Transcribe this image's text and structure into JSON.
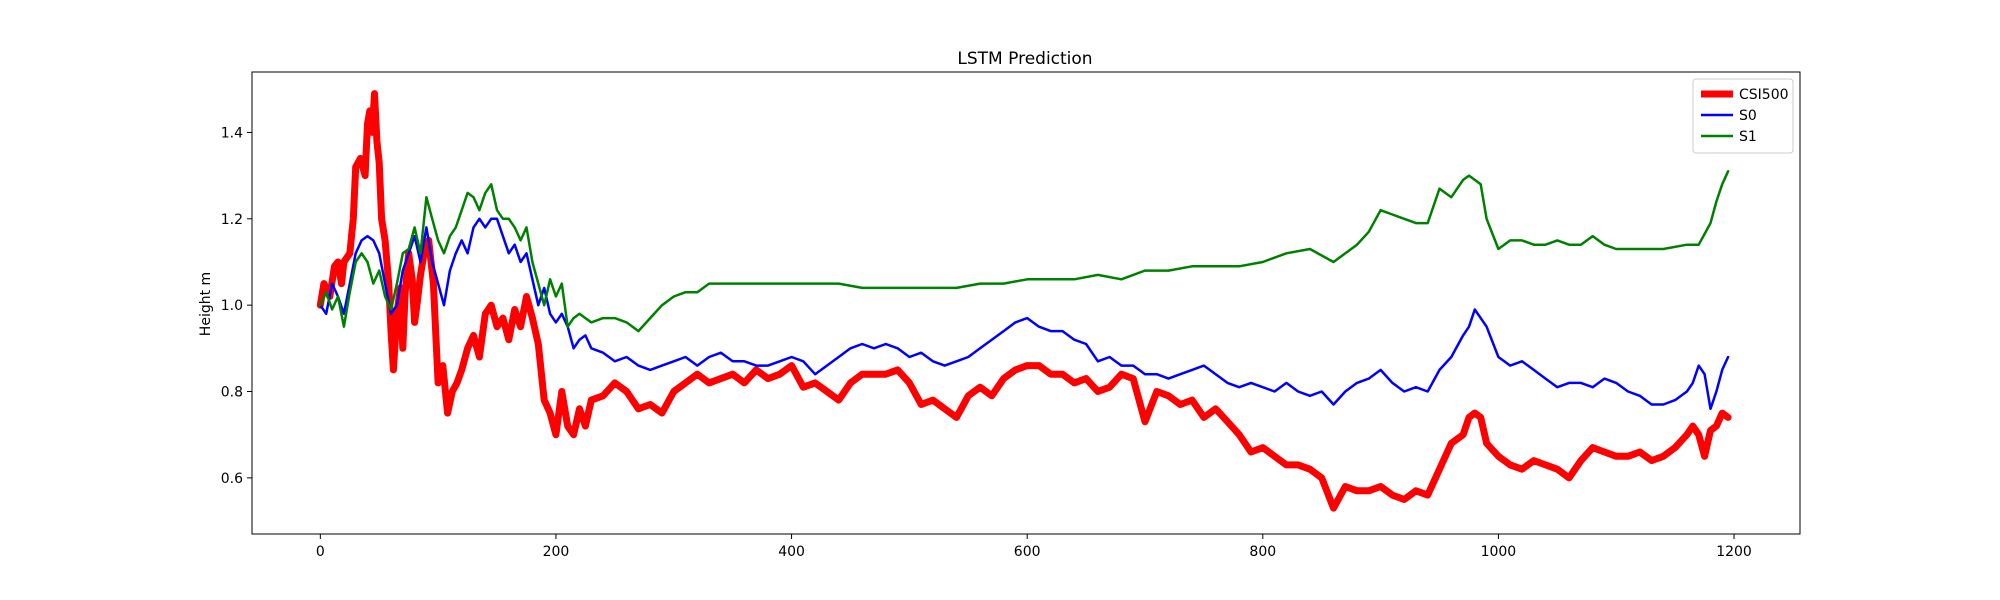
{
  "chart_data": {
    "type": "line",
    "title": "LSTM Prediction",
    "xlabel": "",
    "ylabel": "Height m",
    "xlim": [
      -58,
      1256
    ],
    "ylim": [
      0.47,
      1.54
    ],
    "x_ticks": [
      0,
      200,
      400,
      600,
      800,
      1000,
      1200
    ],
    "y_ticks": [
      0.6,
      0.8,
      1.0,
      1.2,
      1.4
    ],
    "grid": false,
    "legend_position": "top-right",
    "series": [
      {
        "name": "CSI500",
        "color": "#ff0000",
        "x": [
          0,
          3,
          8,
          12,
          15,
          18,
          20,
          25,
          28,
          30,
          34,
          38,
          40,
          42,
          44,
          46,
          48,
          50,
          52,
          55,
          58,
          60,
          62,
          65,
          68,
          70,
          72,
          75,
          78,
          80,
          82,
          85,
          88,
          92,
          96,
          100,
          104,
          108,
          112,
          116,
          120,
          125,
          130,
          135,
          140,
          145,
          150,
          155,
          160,
          165,
          170,
          175,
          180,
          185,
          190,
          195,
          200,
          205,
          210,
          215,
          220,
          225,
          230,
          240,
          250,
          260,
          270,
          280,
          290,
          300,
          310,
          320,
          330,
          340,
          350,
          360,
          370,
          380,
          390,
          400,
          410,
          420,
          430,
          440,
          450,
          460,
          470,
          480,
          490,
          500,
          510,
          520,
          530,
          540,
          550,
          560,
          570,
          580,
          590,
          600,
          610,
          620,
          630,
          640,
          650,
          660,
          670,
          680,
          690,
          700,
          710,
          720,
          730,
          740,
          750,
          760,
          770,
          780,
          790,
          800,
          810,
          820,
          830,
          840,
          850,
          860,
          870,
          880,
          890,
          900,
          910,
          920,
          930,
          940,
          950,
          960,
          970,
          975,
          980,
          985,
          990,
          1000,
          1010,
          1020,
          1030,
          1040,
          1050,
          1060,
          1070,
          1080,
          1090,
          1100,
          1110,
          1120,
          1130,
          1140,
          1150,
          1160,
          1165,
          1170,
          1175,
          1180,
          1185,
          1190,
          1195
        ],
        "y": [
          1.0,
          1.05,
          1.02,
          1.09,
          1.1,
          1.05,
          1.1,
          1.12,
          1.2,
          1.32,
          1.34,
          1.3,
          1.42,
          1.45,
          1.4,
          1.49,
          1.38,
          1.33,
          1.2,
          1.15,
          1.05,
          0.94,
          0.85,
          0.98,
          1.04,
          0.9,
          1.03,
          1.12,
          1.06,
          0.96,
          1.0,
          1.07,
          1.12,
          1.15,
          1.05,
          0.82,
          0.86,
          0.75,
          0.8,
          0.82,
          0.85,
          0.9,
          0.93,
          0.88,
          0.98,
          1.0,
          0.95,
          0.97,
          0.92,
          0.99,
          0.95,
          1.02,
          0.97,
          0.91,
          0.78,
          0.75,
          0.7,
          0.8,
          0.72,
          0.7,
          0.76,
          0.72,
          0.78,
          0.79,
          0.82,
          0.8,
          0.76,
          0.77,
          0.75,
          0.8,
          0.82,
          0.84,
          0.82,
          0.83,
          0.84,
          0.82,
          0.85,
          0.83,
          0.84,
          0.86,
          0.81,
          0.82,
          0.8,
          0.78,
          0.82,
          0.84,
          0.84,
          0.84,
          0.85,
          0.82,
          0.77,
          0.78,
          0.76,
          0.74,
          0.79,
          0.81,
          0.79,
          0.83,
          0.85,
          0.86,
          0.86,
          0.84,
          0.84,
          0.82,
          0.83,
          0.8,
          0.81,
          0.84,
          0.83,
          0.73,
          0.8,
          0.79,
          0.77,
          0.78,
          0.74,
          0.76,
          0.73,
          0.7,
          0.66,
          0.67,
          0.65,
          0.63,
          0.63,
          0.62,
          0.6,
          0.53,
          0.58,
          0.57,
          0.57,
          0.58,
          0.56,
          0.55,
          0.57,
          0.56,
          0.62,
          0.68,
          0.7,
          0.74,
          0.75,
          0.74,
          0.68,
          0.65,
          0.63,
          0.62,
          0.64,
          0.63,
          0.62,
          0.6,
          0.64,
          0.67,
          0.66,
          0.65,
          0.65,
          0.66,
          0.64,
          0.65,
          0.67,
          0.7,
          0.72,
          0.7,
          0.65,
          0.71,
          0.72,
          0.75,
          0.74
        ]
      },
      {
        "name": "S0",
        "color": "#0000ff",
        "x": [
          0,
          5,
          10,
          15,
          20,
          25,
          30,
          35,
          40,
          45,
          50,
          55,
          60,
          65,
          70,
          75,
          80,
          85,
          90,
          95,
          100,
          105,
          110,
          115,
          120,
          125,
          130,
          135,
          140,
          145,
          150,
          155,
          160,
          165,
          170,
          175,
          180,
          185,
          190,
          195,
          200,
          205,
          210,
          215,
          220,
          225,
          230,
          240,
          250,
          260,
          270,
          280,
          290,
          300,
          310,
          320,
          330,
          340,
          350,
          360,
          370,
          380,
          390,
          400,
          410,
          420,
          430,
          440,
          450,
          460,
          470,
          480,
          490,
          500,
          510,
          520,
          530,
          540,
          550,
          560,
          570,
          580,
          590,
          600,
          610,
          620,
          630,
          640,
          650,
          660,
          670,
          680,
          690,
          700,
          710,
          720,
          730,
          740,
          750,
          760,
          770,
          780,
          790,
          800,
          810,
          820,
          830,
          840,
          850,
          860,
          870,
          880,
          890,
          900,
          910,
          920,
          930,
          940,
          950,
          960,
          970,
          975,
          980,
          985,
          990,
          1000,
          1010,
          1020,
          1030,
          1040,
          1050,
          1060,
          1070,
          1080,
          1090,
          1100,
          1110,
          1120,
          1130,
          1140,
          1150,
          1160,
          1165,
          1170,
          1175,
          1180,
          1185,
          1190,
          1195
        ],
        "y": [
          1.0,
          0.98,
          1.05,
          1.02,
          0.98,
          1.05,
          1.12,
          1.15,
          1.16,
          1.15,
          1.12,
          1.05,
          0.98,
          1.0,
          1.08,
          1.12,
          1.16,
          1.1,
          1.18,
          1.1,
          1.05,
          1.0,
          1.08,
          1.12,
          1.15,
          1.12,
          1.18,
          1.2,
          1.18,
          1.2,
          1.2,
          1.16,
          1.12,
          1.14,
          1.1,
          1.12,
          1.06,
          1.0,
          1.04,
          0.98,
          0.96,
          0.98,
          0.95,
          0.9,
          0.92,
          0.93,
          0.9,
          0.89,
          0.87,
          0.88,
          0.86,
          0.85,
          0.86,
          0.87,
          0.88,
          0.86,
          0.88,
          0.89,
          0.87,
          0.87,
          0.86,
          0.86,
          0.87,
          0.88,
          0.87,
          0.84,
          0.86,
          0.88,
          0.9,
          0.91,
          0.9,
          0.91,
          0.9,
          0.88,
          0.89,
          0.87,
          0.86,
          0.87,
          0.88,
          0.9,
          0.92,
          0.94,
          0.96,
          0.97,
          0.95,
          0.94,
          0.94,
          0.92,
          0.91,
          0.87,
          0.88,
          0.86,
          0.86,
          0.84,
          0.84,
          0.83,
          0.84,
          0.85,
          0.86,
          0.84,
          0.82,
          0.81,
          0.82,
          0.81,
          0.8,
          0.82,
          0.8,
          0.79,
          0.8,
          0.77,
          0.8,
          0.82,
          0.83,
          0.85,
          0.82,
          0.8,
          0.81,
          0.8,
          0.85,
          0.88,
          0.93,
          0.95,
          0.99,
          0.97,
          0.95,
          0.88,
          0.86,
          0.87,
          0.85,
          0.83,
          0.81,
          0.82,
          0.82,
          0.81,
          0.83,
          0.82,
          0.8,
          0.79,
          0.77,
          0.77,
          0.78,
          0.8,
          0.82,
          0.86,
          0.84,
          0.76,
          0.8,
          0.85,
          0.88
        ]
      },
      {
        "name": "S1",
        "color": "#008000",
        "x": [
          0,
          5,
          10,
          15,
          20,
          25,
          30,
          35,
          40,
          45,
          50,
          55,
          60,
          65,
          70,
          75,
          80,
          85,
          90,
          95,
          100,
          105,
          110,
          115,
          120,
          125,
          130,
          135,
          140,
          145,
          150,
          155,
          160,
          165,
          170,
          175,
          180,
          185,
          190,
          195,
          200,
          205,
          210,
          215,
          220,
          225,
          230,
          240,
          250,
          260,
          270,
          280,
          290,
          300,
          310,
          320,
          330,
          340,
          350,
          360,
          370,
          380,
          390,
          400,
          420,
          440,
          460,
          480,
          500,
          520,
          540,
          560,
          580,
          600,
          620,
          640,
          660,
          680,
          700,
          720,
          740,
          760,
          780,
          800,
          820,
          840,
          860,
          880,
          890,
          900,
          910,
          920,
          930,
          940,
          950,
          960,
          970,
          975,
          980,
          985,
          990,
          1000,
          1010,
          1020,
          1030,
          1040,
          1050,
          1060,
          1070,
          1080,
          1090,
          1100,
          1120,
          1140,
          1160,
          1170,
          1180,
          1185,
          1190,
          1195
        ],
        "y": [
          1.0,
          1.03,
          0.99,
          1.02,
          0.95,
          1.03,
          1.1,
          1.12,
          1.1,
          1.05,
          1.08,
          1.02,
          0.99,
          1.05,
          1.12,
          1.13,
          1.18,
          1.12,
          1.25,
          1.2,
          1.15,
          1.12,
          1.16,
          1.18,
          1.22,
          1.26,
          1.25,
          1.22,
          1.26,
          1.28,
          1.22,
          1.2,
          1.2,
          1.18,
          1.15,
          1.18,
          1.1,
          1.05,
          1.0,
          1.06,
          1.02,
          1.05,
          0.95,
          0.97,
          0.98,
          0.97,
          0.96,
          0.97,
          0.97,
          0.96,
          0.94,
          0.97,
          1.0,
          1.02,
          1.03,
          1.03,
          1.05,
          1.05,
          1.05,
          1.05,
          1.05,
          1.05,
          1.05,
          1.05,
          1.05,
          1.05,
          1.04,
          1.04,
          1.04,
          1.04,
          1.04,
          1.05,
          1.05,
          1.06,
          1.06,
          1.06,
          1.07,
          1.06,
          1.08,
          1.08,
          1.09,
          1.09,
          1.09,
          1.1,
          1.12,
          1.13,
          1.1,
          1.14,
          1.17,
          1.22,
          1.21,
          1.2,
          1.19,
          1.19,
          1.27,
          1.25,
          1.29,
          1.3,
          1.29,
          1.28,
          1.2,
          1.13,
          1.15,
          1.15,
          1.14,
          1.14,
          1.15,
          1.14,
          1.14,
          1.16,
          1.14,
          1.13,
          1.13,
          1.13,
          1.14,
          1.14,
          1.19,
          1.24,
          1.28,
          1.31
        ]
      }
    ]
  }
}
